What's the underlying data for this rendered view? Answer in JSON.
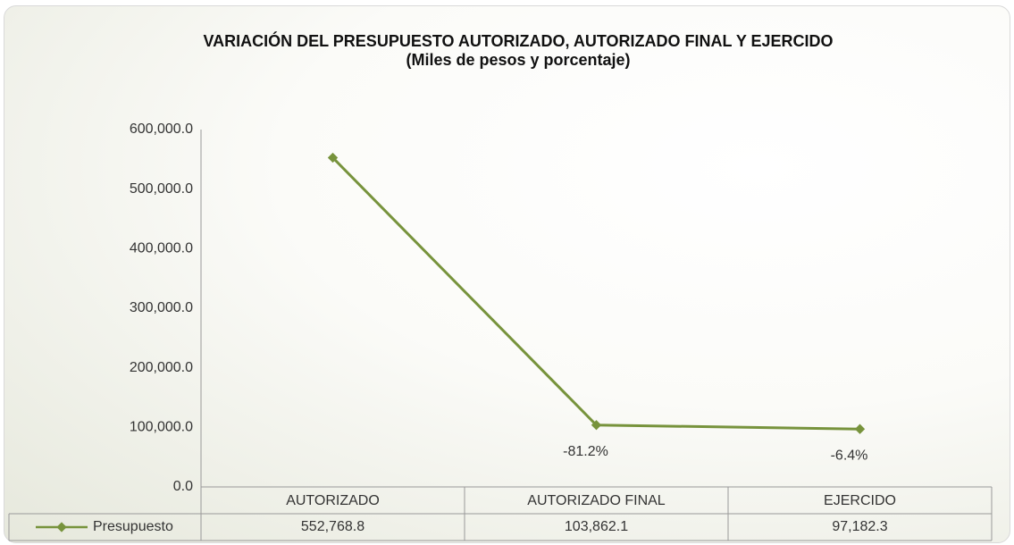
{
  "chart_data": {
    "type": "line",
    "title": "VARIACIÓN DEL PRESUPUESTO AUTORIZADO, AUTORIZADO FINAL Y EJERCIDO",
    "subtitle": "(Miles de pesos y porcentaje)",
    "categories": [
      "AUTORIZADO",
      "AUTORIZADO FINAL",
      "EJERCIDO"
    ],
    "series": [
      {
        "name": "Presupuesto",
        "color": "#77933c",
        "values": [
          552768.8,
          103862.1,
          97182.3
        ],
        "value_labels": [
          "552,768.8",
          "103,862.1",
          "97,182.3"
        ]
      }
    ],
    "annotations": [
      "-81.2%",
      "-6.4%"
    ],
    "ylim": [
      0,
      600000
    ],
    "yticks": [
      {
        "value": 0,
        "label": "0.0"
      },
      {
        "value": 100000,
        "label": "100,000.0"
      },
      {
        "value": 200000,
        "label": "200,000.0"
      },
      {
        "value": 300000,
        "label": "300,000.0"
      },
      {
        "value": 400000,
        "label": "400,000.0"
      },
      {
        "value": 500000,
        "label": "500,000.0"
      },
      {
        "value": 600000,
        "label": "600,000.0"
      }
    ]
  }
}
